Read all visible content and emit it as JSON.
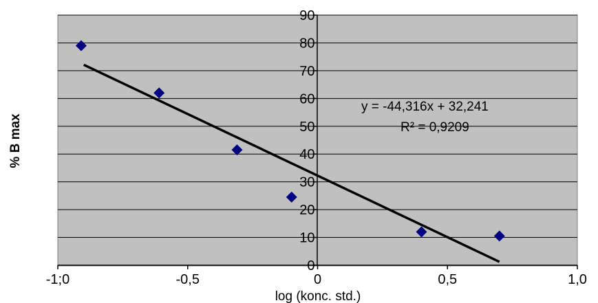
{
  "chart_data": {
    "type": "scatter",
    "xlabel": "log (konc. std.)",
    "ylabel": "% B max",
    "xlim": [
      -1.0,
      1.0
    ],
    "ylim": [
      0,
      90
    ],
    "x_ticks": [
      -1.0,
      -0.5,
      0,
      0.5,
      1.0
    ],
    "y_ticks": [
      0,
      10,
      20,
      30,
      40,
      50,
      60,
      70,
      80,
      90
    ],
    "x_tick_labels": [
      "-1;0",
      "-0,5",
      "0",
      "0,5",
      "1,0"
    ],
    "y_tick_labels": [
      "0",
      "10",
      "20",
      "30",
      "40",
      "50",
      "60",
      "70",
      "80",
      "90"
    ],
    "grid": "horizontal",
    "plot_background": "#c0c0c0",
    "series": [
      {
        "marker": "diamond",
        "color": "#000080",
        "points": [
          {
            "x": -0.91,
            "y": 79
          },
          {
            "x": -0.61,
            "y": 62
          },
          {
            "x": -0.31,
            "y": 41.5
          },
          {
            "x": -0.1,
            "y": 24.5
          },
          {
            "x": 0.4,
            "y": 12
          },
          {
            "x": 0.7,
            "y": 10.5
          }
        ]
      }
    ],
    "trendline": {
      "slope": -44.316,
      "intercept": 32.241,
      "x_range": [
        -0.9,
        0.7
      ],
      "color": "#000000",
      "equation": "y = -44,316x  + 32,241",
      "r_squared": "R² = 0,9209"
    }
  }
}
